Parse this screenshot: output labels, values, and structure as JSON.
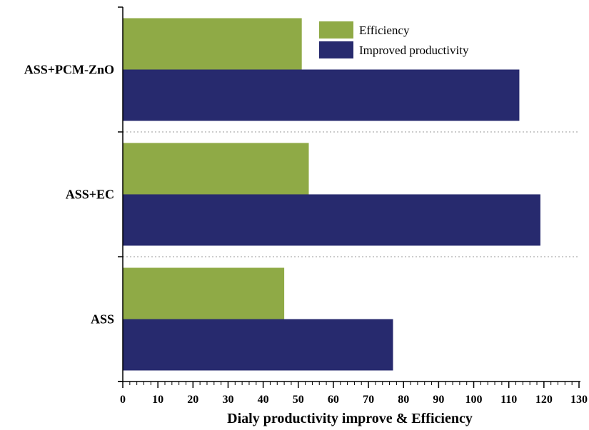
{
  "chart_data": {
    "type": "bar",
    "orientation": "horizontal",
    "categories": [
      "ASS",
      "ASS+EC",
      "ASS+PCM-ZnO"
    ],
    "series": [
      {
        "name": "Efficiency",
        "values": [
          46,
          53,
          51
        ],
        "color": "#8faa46"
      },
      {
        "name": "Improved productivity",
        "values": [
          77,
          119,
          113
        ],
        "color": "#272a6e"
      }
    ],
    "xlabel": "Dialy productivity improve & Efficiency",
    "ylabel": "",
    "xlim": [
      0,
      130
    ],
    "xticks": [
      0,
      10,
      20,
      30,
      40,
      50,
      60,
      70,
      80,
      90,
      100,
      110,
      120,
      130
    ],
    "grid": "dotted separators between categories",
    "legend_position": "top-right"
  }
}
